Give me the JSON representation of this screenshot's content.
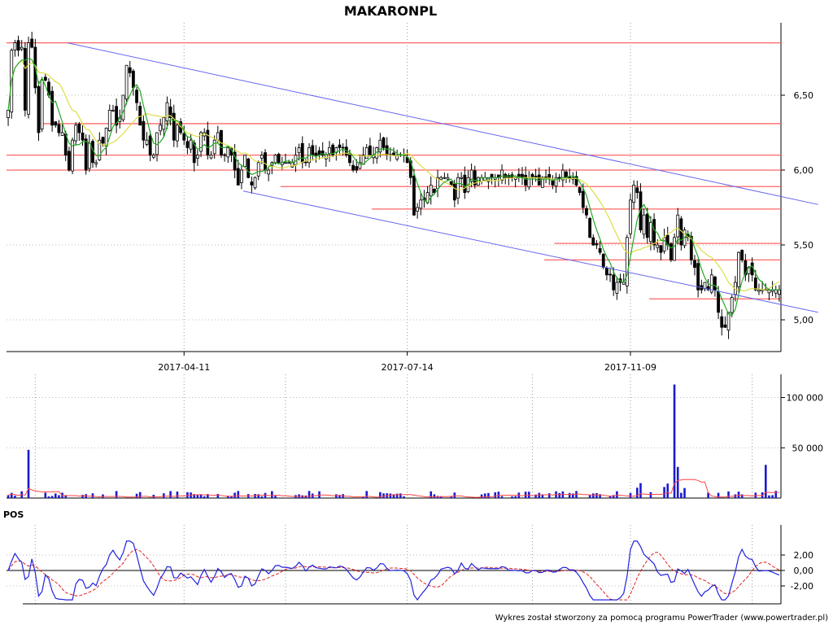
{
  "chart_data": {
    "type": "candlestick",
    "title": "MAKARONPL",
    "footer": "Wykres został stworzony za pomocą programu PowerTrader (www.powertrader.pl)",
    "colors": {
      "support_resistance": "#ff6666",
      "trend_channel": "#6666ee",
      "ma_short": "#22aa22",
      "ma_long": "#dddd44",
      "volume_bars": "#1a1acc",
      "volume_avg": "#ff4444",
      "pos_line": "#2222dd",
      "pos_signal": "#dd2222"
    },
    "price_panel": {
      "y_ticks": [
        "6,50",
        "6,00",
        "5,50",
        "5,00"
      ],
      "y_tick_values": [
        6.5,
        6.0,
        5.5,
        5.0
      ],
      "ylim": [
        4.9,
        6.9
      ],
      "x_ticks": [
        "2017-04-11",
        "2017-07-14",
        "2017-11-09"
      ],
      "x_tick_index": [
        52,
        118,
        184
      ],
      "num_bars": 240,
      "closes": [
        6.4,
        6.8,
        6.85,
        6.8,
        6.82,
        6.4,
        6.85,
        6.82,
        6.55,
        6.25,
        6.6,
        6.6,
        6.5,
        6.3,
        6.3,
        6.25,
        6.25,
        6.1,
        6.0,
        6.2,
        6.3,
        6.25,
        6.2,
        6.0,
        6.18,
        6.05,
        6.05,
        6.2,
        6.18,
        6.28,
        6.4,
        6.4,
        6.3,
        6.35,
        6.5,
        6.7,
        6.65,
        6.55,
        6.45,
        6.3,
        6.2,
        6.2,
        6.1,
        6.1,
        6.25,
        6.3,
        6.35,
        6.45,
        6.35,
        6.2,
        6.3,
        6.25,
        6.2,
        6.15,
        6.2,
        6.05,
        6.1,
        6.25,
        6.25,
        6.1,
        6.1,
        6.2,
        6.25,
        6.1,
        6.1,
        6.15,
        6.1,
        6.0,
        5.9,
        6.0,
        6.1,
        5.95,
        5.9,
        5.95,
        6.05,
        6.1,
        6.0,
        6.0,
        6.05,
        6.1,
        6.05,
        6.05,
        6.05,
        6.05,
        6.05,
        6.1,
        6.15,
        6.05,
        6.05,
        6.15,
        6.1,
        6.1,
        6.1,
        6.1,
        6.1,
        6.15,
        6.1,
        6.15,
        6.15,
        6.15,
        6.1,
        6.05,
        6.0,
        6.0,
        6.05,
        6.1,
        6.15,
        6.1,
        6.1,
        6.15,
        6.2,
        6.15,
        6.1,
        6.1,
        6.1,
        6.1,
        6.1,
        6.1,
        6.05,
        5.95,
        5.7,
        5.75,
        5.8,
        5.8,
        5.85,
        5.9,
        5.85,
        5.95,
        5.95,
        5.95,
        5.95,
        5.9,
        5.8,
        5.95,
        5.95,
        5.85,
        5.95,
        6.0,
        5.9,
        5.95,
        5.95,
        5.95,
        5.95,
        5.95,
        5.95,
        5.95,
        6.0,
        5.95,
        5.95,
        5.95,
        5.95,
        5.95,
        5.95,
        5.9,
        5.95,
        5.95,
        5.95,
        5.9,
        5.95,
        5.95,
        5.95,
        5.9,
        5.95,
        5.95,
        6.0,
        5.95,
        5.95,
        5.95,
        5.9,
        5.85,
        5.75,
        5.7,
        5.55,
        5.5,
        5.5,
        5.45,
        5.35,
        5.3,
        5.3,
        5.2,
        5.25,
        5.25,
        5.25,
        5.55,
        5.8,
        5.9,
        5.85,
        5.6,
        5.7,
        5.55,
        5.65,
        5.5,
        5.5,
        5.45,
        5.55,
        5.5,
        5.4,
        5.55,
        5.7,
        5.5,
        5.6,
        5.55,
        5.4,
        5.35,
        5.2,
        5.2,
        5.25,
        5.2,
        5.3,
        5.2,
        5.05,
        4.95,
        4.95,
        5.05,
        5.15,
        5.25,
        5.45,
        5.4,
        5.3,
        5.35,
        5.3,
        5.2,
        5.2,
        5.2,
        5.2,
        5.2,
        5.2,
        5.2,
        5.2
      ],
      "horizontal_levels": [
        {
          "price": 6.85,
          "from": 0,
          "to": 240
        },
        {
          "price": 6.31,
          "from": 10,
          "to": 240
        },
        {
          "price": 6.1,
          "from": 0,
          "to": 240
        },
        {
          "price": 6.0,
          "from": 0,
          "to": 240
        },
        {
          "price": 5.89,
          "from": 81,
          "to": 240
        },
        {
          "price": 5.74,
          "from": 108,
          "to": 240
        },
        {
          "price": 5.51,
          "from": 162,
          "to": 240
        },
        {
          "price": 5.4,
          "from": 159,
          "to": 240
        },
        {
          "price": 5.14,
          "from": 190,
          "to": 240
        }
      ],
      "channel_lines": [
        {
          "from": [
            18,
            6.85
          ],
          "to": [
            240,
            5.77
          ]
        },
        {
          "from": [
            70,
            5.86
          ],
          "to": [
            240,
            5.05
          ]
        }
      ]
    },
    "volume_panel": {
      "y_ticks": [
        "100 000",
        "50 000"
      ],
      "y_tick_values": [
        100000,
        50000
      ],
      "ylim": [
        0,
        115000
      ],
      "spikes": [
        {
          "index": 6,
          "value": 48000
        },
        {
          "index": 197,
          "value": 113000
        },
        {
          "index": 198,
          "value": 31000
        },
        {
          "index": 224,
          "value": 33000
        },
        {
          "index": 239,
          "value": 20000
        }
      ],
      "baseline": 4000
    },
    "pos_panel": {
      "label": "POS",
      "y_ticks": [
        "2,00",
        "0,00",
        "-2,00"
      ],
      "y_tick_values": [
        2,
        0,
        -2
      ],
      "ylim": [
        -4,
        4
      ]
    }
  }
}
